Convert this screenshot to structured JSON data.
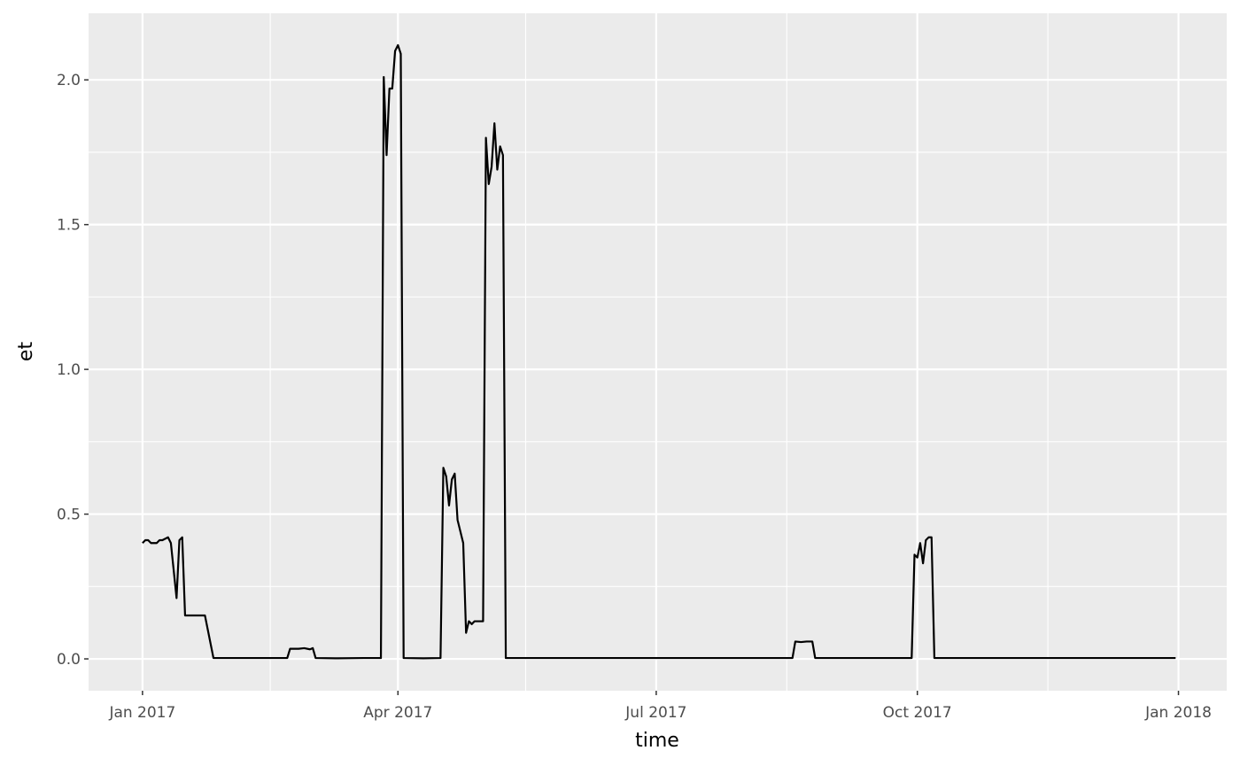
{
  "chart_data": {
    "type": "line",
    "title": "",
    "xlabel": "time",
    "ylabel": "et",
    "x_range": [
      "2016-12-13",
      "2018-01-18"
    ],
    "ylim": [
      -0.11,
      2.23
    ],
    "y_ticks": [
      0.0,
      0.5,
      1.0,
      1.5,
      2.0
    ],
    "y_tick_labels": [
      "0.0",
      "0.5",
      "1.0",
      "1.5",
      "2.0"
    ],
    "x_ticks": [
      "2017-01-01",
      "2017-04-01",
      "2017-07-01",
      "2017-10-01",
      "2018-01-01"
    ],
    "x_tick_labels": [
      "Jan 2017",
      "Apr 2017",
      "Jul 2017",
      "Oct 2017",
      "Jan 2018"
    ],
    "x_minor_ticks": [
      "2017-02-15",
      "2017-05-16",
      "2017-08-16",
      "2017-11-16"
    ],
    "y_minor_ticks": [
      0.25,
      0.75,
      1.25,
      1.75
    ],
    "grid": true,
    "legend": "none",
    "colors": {
      "panel": "#ebebeb",
      "grid": "#ffffff",
      "line": "#000000"
    },
    "series": [
      {
        "points": [
          [
            "2017-01-01",
            0.4
          ],
          [
            "2017-01-02",
            0.41
          ],
          [
            "2017-01-03",
            0.41
          ],
          [
            "2017-01-04",
            0.4
          ],
          [
            "2017-01-05",
            0.4
          ],
          [
            "2017-01-06",
            0.4
          ],
          [
            "2017-01-07",
            0.41
          ],
          [
            "2017-01-08",
            0.41
          ],
          [
            "2017-01-10",
            0.42
          ],
          [
            "2017-01-11",
            0.4
          ],
          [
            "2017-01-13",
            0.21
          ],
          [
            "2017-01-14",
            0.41
          ],
          [
            "2017-01-15",
            0.42
          ],
          [
            "2017-01-16",
            0.15
          ],
          [
            "2017-01-17",
            0.15
          ],
          [
            "2017-01-19",
            0.15
          ],
          [
            "2017-01-21",
            0.15
          ],
          [
            "2017-01-23",
            0.15
          ],
          [
            "2017-01-26",
            0.003
          ],
          [
            "2017-02-01",
            0.003
          ],
          [
            "2017-02-10",
            0.003
          ],
          [
            "2017-02-21",
            0.003
          ],
          [
            "2017-02-22",
            0.035
          ],
          [
            "2017-02-25",
            0.035
          ],
          [
            "2017-02-27",
            0.037
          ],
          [
            "2017-03-01",
            0.033
          ],
          [
            "2017-03-02",
            0.037
          ],
          [
            "2017-03-03",
            0.003
          ],
          [
            "2017-03-10",
            0.002
          ],
          [
            "2017-03-20",
            0.003
          ],
          [
            "2017-03-26",
            0.003
          ],
          [
            "2017-03-27",
            2.01
          ],
          [
            "2017-03-28",
            1.74
          ],
          [
            "2017-03-29",
            1.97
          ],
          [
            "2017-03-30",
            1.97
          ],
          [
            "2017-03-31",
            2.1
          ],
          [
            "2017-04-01",
            2.12
          ],
          [
            "2017-04-02",
            2.09
          ],
          [
            "2017-04-03",
            0.003
          ],
          [
            "2017-04-10",
            0.002
          ],
          [
            "2017-04-16",
            0.003
          ],
          [
            "2017-04-17",
            0.66
          ],
          [
            "2017-04-18",
            0.63
          ],
          [
            "2017-04-19",
            0.53
          ],
          [
            "2017-04-20",
            0.62
          ],
          [
            "2017-04-21",
            0.64
          ],
          [
            "2017-04-22",
            0.48
          ],
          [
            "2017-04-24",
            0.4
          ],
          [
            "2017-04-25",
            0.09
          ],
          [
            "2017-04-26",
            0.13
          ],
          [
            "2017-04-27",
            0.12
          ],
          [
            "2017-04-28",
            0.13
          ],
          [
            "2017-04-29",
            0.13
          ],
          [
            "2017-04-30",
            0.13
          ],
          [
            "2017-05-01",
            0.13
          ],
          [
            "2017-05-02",
            1.8
          ],
          [
            "2017-05-03",
            1.64
          ],
          [
            "2017-05-04",
            1.7
          ],
          [
            "2017-05-05",
            1.85
          ],
          [
            "2017-05-06",
            1.69
          ],
          [
            "2017-05-07",
            1.77
          ],
          [
            "2017-05-08",
            1.74
          ],
          [
            "2017-05-09",
            0.003
          ],
          [
            "2017-06-01",
            0.003
          ],
          [
            "2017-07-01",
            0.003
          ],
          [
            "2017-08-01",
            0.003
          ],
          [
            "2017-08-18",
            0.003
          ],
          [
            "2017-08-19",
            0.06
          ],
          [
            "2017-08-21",
            0.058
          ],
          [
            "2017-08-23",
            0.06
          ],
          [
            "2017-08-25",
            0.06
          ],
          [
            "2017-08-26",
            0.003
          ],
          [
            "2017-09-10",
            0.003
          ],
          [
            "2017-09-29",
            0.003
          ],
          [
            "2017-09-30",
            0.36
          ],
          [
            "2017-10-01",
            0.35
          ],
          [
            "2017-10-02",
            0.4
          ],
          [
            "2017-10-03",
            0.33
          ],
          [
            "2017-10-04",
            0.41
          ],
          [
            "2017-10-05",
            0.42
          ],
          [
            "2017-10-06",
            0.42
          ],
          [
            "2017-10-07",
            0.003
          ],
          [
            "2017-11-01",
            0.003
          ],
          [
            "2017-12-01",
            0.003
          ],
          [
            "2017-12-31",
            0.003
          ]
        ]
      }
    ]
  }
}
